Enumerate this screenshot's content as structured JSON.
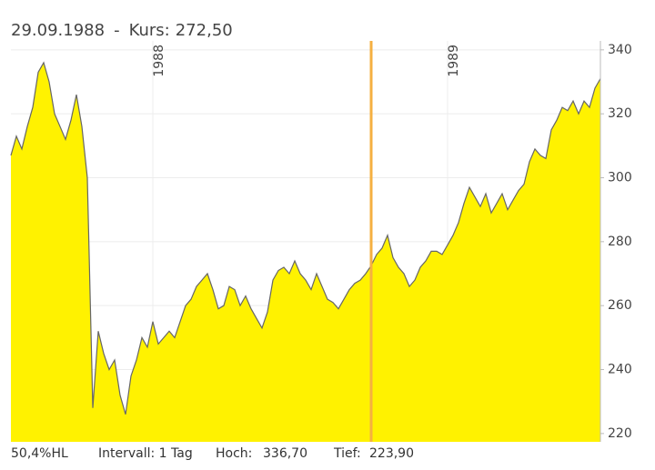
{
  "chart_data": {
    "type": "area",
    "title_separator": "-",
    "cursor_label": "Kurs:",
    "cursor_value_label": "272,50",
    "categories": [
      null,
      null,
      null,
      null,
      null,
      null,
      null,
      null,
      null,
      null,
      null,
      null,
      null,
      null,
      null,
      null,
      null,
      null,
      null,
      null,
      null,
      null,
      null,
      null,
      null,
      null,
      "1988",
      null,
      null,
      null,
      null,
      null,
      null,
      null,
      null,
      null,
      null,
      null,
      null,
      null,
      null,
      null,
      null,
      null,
      null,
      null,
      null,
      null,
      null,
      null,
      null,
      null,
      null,
      null,
      null,
      null,
      null,
      null,
      null,
      null,
      null,
      null,
      null,
      null,
      null,
      null,
      "29.09.1988",
      null,
      null,
      null,
      null,
      null,
      null,
      null,
      null,
      null,
      null,
      null,
      null,
      null,
      "1989",
      null,
      null,
      null,
      null,
      null,
      null,
      null,
      null,
      null,
      null,
      null,
      null,
      null,
      null,
      null,
      null,
      null,
      null,
      null,
      null,
      null,
      null,
      null,
      null,
      null,
      null,
      null,
      null
    ],
    "values": [
      307,
      313,
      309,
      316,
      322,
      333,
      336,
      330,
      320,
      316,
      312,
      318,
      326,
      316,
      300,
      228,
      252,
      245,
      240,
      243,
      232,
      226,
      238,
      243,
      250,
      247,
      255,
      248,
      250,
      252,
      250,
      255,
      260,
      262,
      266,
      268,
      270,
      265,
      259,
      260,
      266,
      265,
      260,
      263,
      259,
      256,
      253,
      258,
      268,
      271,
      272,
      270,
      274,
      270,
      268,
      265,
      270,
      266,
      262,
      261,
      259,
      262,
      265,
      267,
      268,
      270,
      272.5,
      276,
      278,
      282,
      275,
      272,
      270,
      266,
      268,
      272,
      274,
      277,
      277,
      276,
      279,
      282,
      286,
      292,
      297,
      294,
      291,
      295,
      289,
      292,
      295,
      290,
      293,
      296,
      298,
      305,
      309,
      307,
      306,
      315,
      318,
      322,
      321,
      324,
      320,
      324,
      322,
      328,
      331
    ],
    "color": "#fff200",
    "line_color": "#666666",
    "cursor_color": "#f5b041",
    "ylim": [
      217.4,
      342.8
    ],
    "yticks": [
      220,
      240,
      260,
      280,
      300,
      320,
      340
    ],
    "grid": true,
    "footer": {
      "range": "50,4%HL",
      "interval": "Intervall: 1 Tag",
      "high_label": "Hoch:",
      "high": "336,70",
      "low_label": "Tief:",
      "low": "223,90"
    }
  }
}
